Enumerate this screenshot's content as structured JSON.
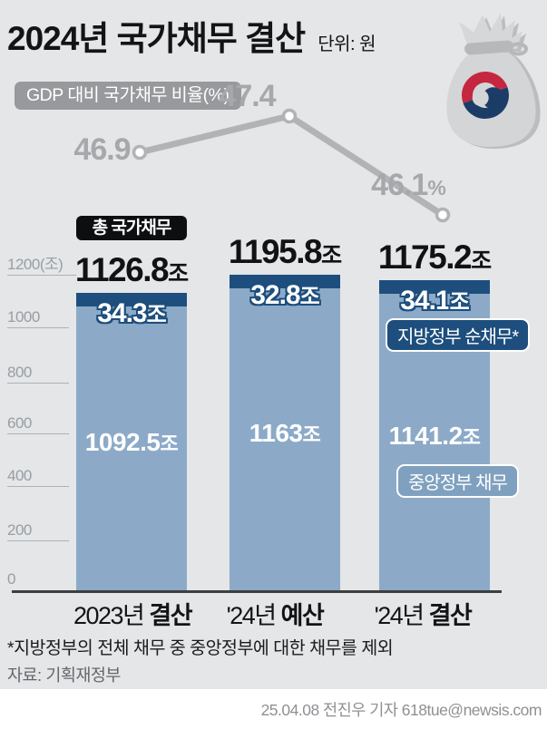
{
  "header": {
    "title_year": "2024년",
    "title_main": "국가채무",
    "title_suffix": "결산",
    "unit_label": "단위: 원"
  },
  "gdp_line": {
    "label": "GDP 대비 국가채무 비율(%)",
    "points": [
      {
        "value": "46.9",
        "suffix": ""
      },
      {
        "value": "47.4",
        "suffix": ""
      },
      {
        "value": "46.1",
        "suffix": "%"
      }
    ]
  },
  "chart": {
    "total_pill_label": "총 국가채무",
    "unit_suffix": "조",
    "y_ticks": [
      "1200(조)",
      "1000",
      "800",
      "600",
      "400",
      "200",
      "0"
    ],
    "local_pill": "지방정부 순채무*",
    "central_pill": "중앙정부 채무",
    "bars": [
      {
        "category_regular": "2023년",
        "category_bold": "결산",
        "total": "1126.8",
        "local": "34.3",
        "central": "1092.5"
      },
      {
        "category_regular": "'24년",
        "category_bold": "예산",
        "total": "1195.8",
        "local": "32.8",
        "central": "1163"
      },
      {
        "category_regular": "'24년",
        "category_bold": "결산",
        "total": "1175.2",
        "local": "34.1",
        "central": "1141.2"
      }
    ]
  },
  "footer": {
    "footnote": "*지방정부의 전체 채무 중 중앙정부에 대한 채무를 제외",
    "source": "자료: 기획재정부",
    "credit": "25.04.08 전진우 기자 618tue@newsis.com"
  },
  "colors": {
    "background": "#e4e6e8",
    "bar_fill": "#8caac8",
    "navy_band": "#1d4e7d",
    "central_pill_bg": "#7fa1bf",
    "line_gray": "#b1b3b5",
    "gdp_text_gray": "#a6a8ab",
    "emblem_red": "#c4273f",
    "emblem_navy": "#1c3c68"
  },
  "chart_data": [
    {
      "type": "line",
      "title": "GDP 대비 국가채무 비율(%)",
      "x": [
        "2023년 결산",
        "'24년 예산",
        "'24년 결산"
      ],
      "values": [
        46.9,
        47.4,
        46.1
      ],
      "unit": "%",
      "grid": false,
      "marker": "open-circle"
    },
    {
      "type": "bar",
      "title": "총 국가채무",
      "categories": [
        "2023년 결산",
        "'24년 예산",
        "'24년 결산"
      ],
      "series": [
        {
          "name": "중앙정부 채무",
          "values": [
            1092.5,
            1163,
            1141.2
          ]
        },
        {
          "name": "지방정부 순채무",
          "values": [
            34.3,
            32.8,
            34.1
          ]
        }
      ],
      "totals": [
        1126.8,
        1195.8,
        1175.2
      ],
      "unit": "조",
      "ylabel": "(조)",
      "ylim": [
        0,
        1260
      ],
      "yticks": [
        0,
        200,
        400,
        600,
        800,
        1000,
        1200
      ],
      "grid": false,
      "stacked": true
    }
  ]
}
